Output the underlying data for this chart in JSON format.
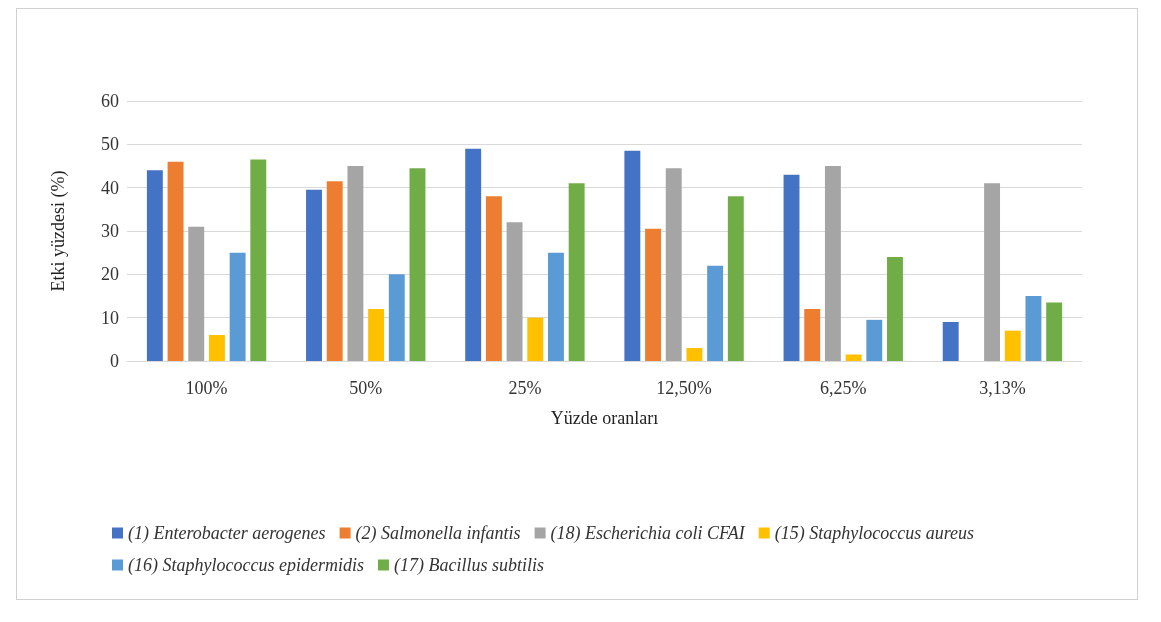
{
  "chart_data": {
    "type": "bar",
    "xlabel": "Yüzde oranları",
    "ylabel": "Etki yüzdesi (%)",
    "categories": [
      "100%",
      "50%",
      "25%",
      "12,50%",
      "6,25%",
      "3,13%"
    ],
    "ylim": [
      0,
      60
    ],
    "yticks": [
      0,
      10,
      20,
      30,
      40,
      50,
      60
    ],
    "grid": "y",
    "legend": "bottom",
    "series": [
      {
        "name": "(1) Enterobacter aerogenes",
        "color": "#4472c4",
        "values": [
          44,
          39.5,
          49,
          48.5,
          43,
          9
        ]
      },
      {
        "name": "(2) Salmonella infantis",
        "color": "#ed7d31",
        "values": [
          46,
          41.5,
          38,
          30.5,
          12,
          0
        ]
      },
      {
        "name": "(18) Escherichia coli CFAI",
        "color": "#a5a5a5",
        "values": [
          31,
          45,
          32,
          44.5,
          45,
          41
        ]
      },
      {
        "name": "(15) Staphylococcus aureus",
        "color": "#ffc000",
        "values": [
          6,
          12,
          10,
          3,
          1.5,
          7
        ]
      },
      {
        "name": "(16) Staphylococcus epidermidis",
        "color": "#5b9bd5",
        "values": [
          25,
          20,
          25,
          22,
          9.5,
          15
        ]
      },
      {
        "name": "(17) Bacillus subtilis",
        "color": "#70ad47",
        "values": [
          46.5,
          44.5,
          41,
          38,
          24,
          13.5
        ]
      }
    ]
  }
}
